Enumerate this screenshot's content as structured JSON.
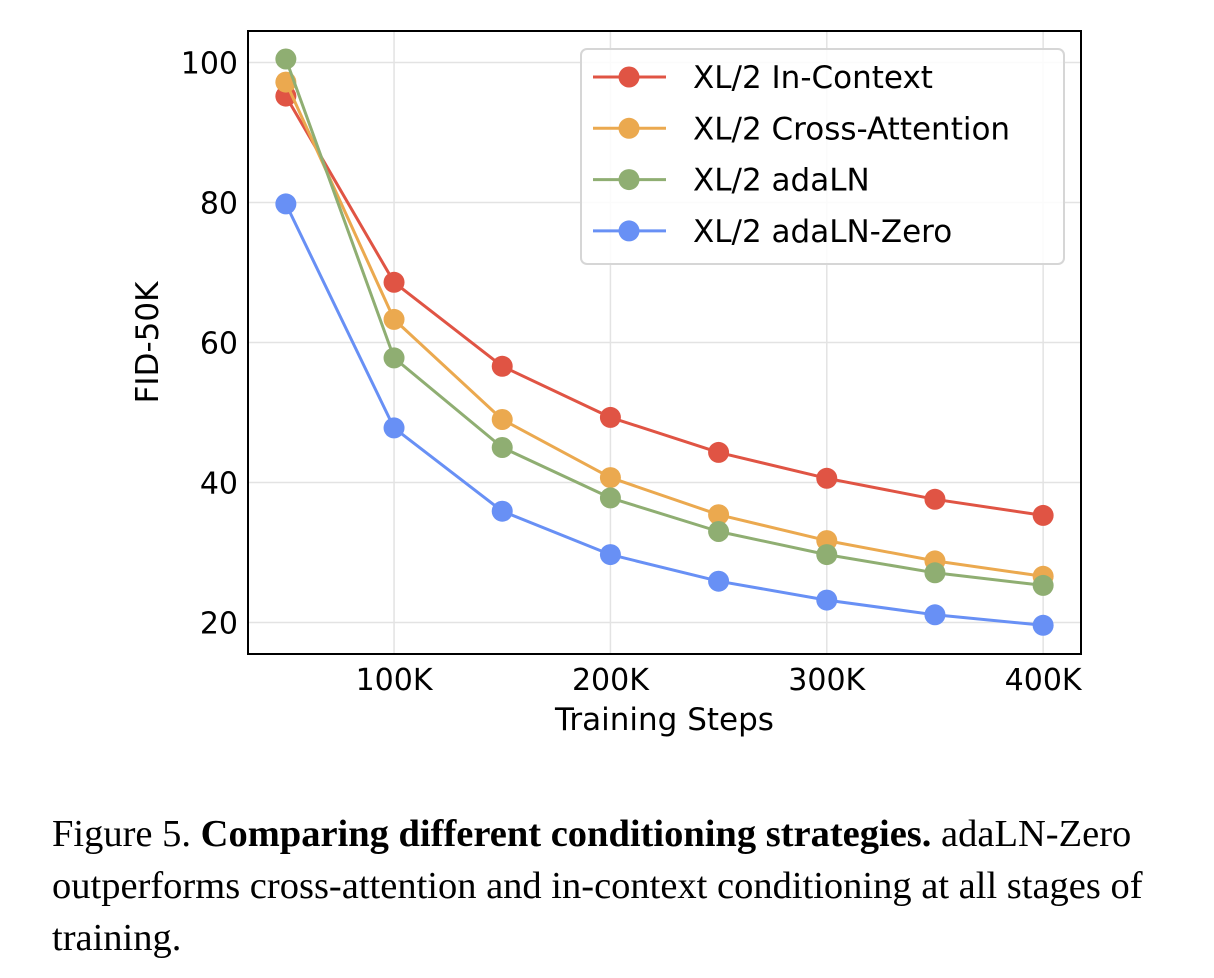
{
  "chart_data": {
    "type": "line",
    "title": "",
    "xlabel": "Training Steps",
    "ylabel": "FID-50K",
    "x": [
      50000,
      100000,
      150000,
      200000,
      250000,
      300000,
      350000,
      400000
    ],
    "xlim": [
      32500,
      417500
    ],
    "ylim": [
      15.5,
      104.5
    ],
    "xticks": [
      100000,
      200000,
      300000,
      400000
    ],
    "xtick_labels": [
      "100K",
      "200K",
      "300K",
      "400K"
    ],
    "yticks": [
      20,
      40,
      60,
      80,
      100
    ],
    "ytick_labels": [
      "20",
      "40",
      "60",
      "80",
      "100"
    ],
    "grid": true,
    "legend_position": "top-right",
    "series": [
      {
        "name": "XL/2 In-Context",
        "color": "#e05444",
        "values": [
          95.2,
          68.6,
          56.6,
          49.3,
          44.3,
          40.6,
          37.6,
          35.3
        ]
      },
      {
        "name": "XL/2 Cross-Attention",
        "color": "#eba94f",
        "values": [
          97.2,
          63.3,
          49.0,
          40.7,
          35.4,
          31.7,
          28.8,
          26.6
        ]
      },
      {
        "name": "XL/2 adaLN",
        "color": "#8fae72",
        "values": [
          100.5,
          57.8,
          45.0,
          37.8,
          33.0,
          29.7,
          27.1,
          25.3
        ]
      },
      {
        "name": "XL/2 adaLN-Zero",
        "color": "#6890f5",
        "values": [
          79.8,
          47.8,
          35.9,
          29.7,
          25.9,
          23.2,
          21.1,
          19.6
        ]
      }
    ]
  },
  "caption": {
    "prefix": "Figure 5.",
    "bold": "Comparing different conditioning strategies.",
    "text": "adaLN-Zero outperforms cross-attention and in-context conditioning at all stages of training."
  }
}
